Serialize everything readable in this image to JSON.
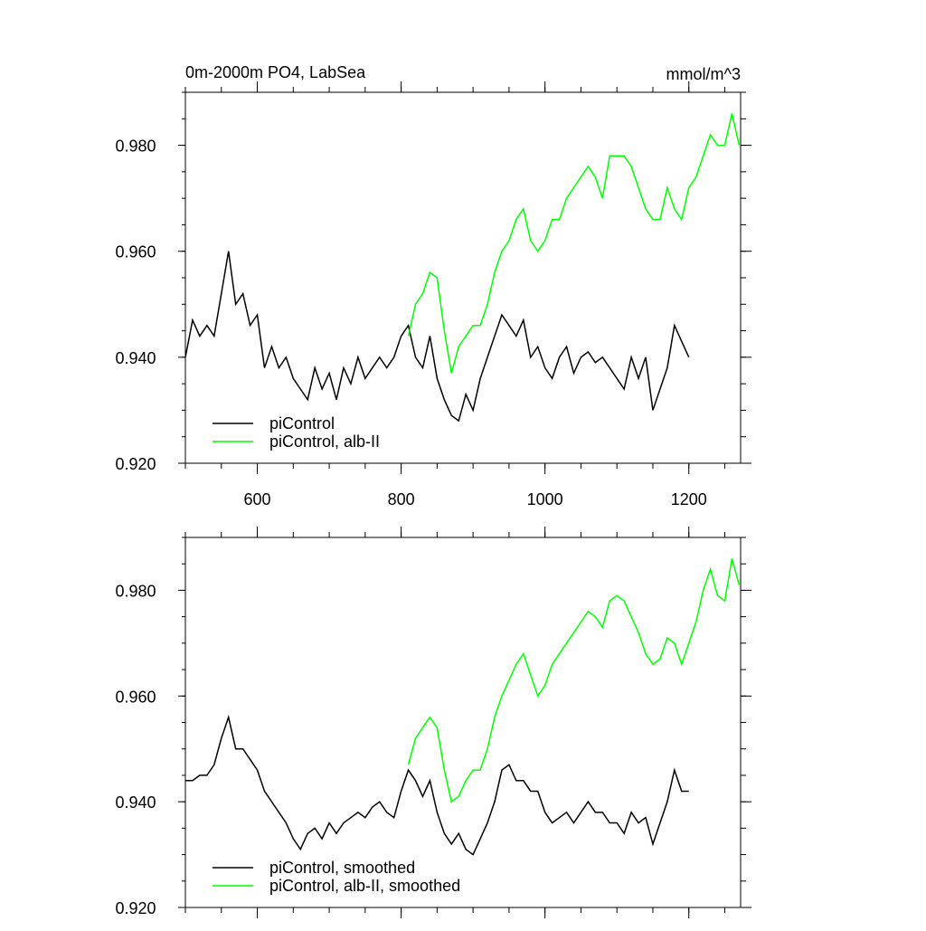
{
  "chart_data": [
    {
      "type": "line",
      "title": "0m-2000m PO4, LabSea",
      "units": "mmol/m^3",
      "xlim": [
        500,
        1272
      ],
      "xticks": [
        600,
        800,
        1000,
        1200
      ],
      "ylim": [
        0.92,
        0.99
      ],
      "yticks": [
        {
          "value": 0.92,
          "label": "0.920"
        },
        {
          "value": 0.94,
          "label": "0.940"
        },
        {
          "value": 0.96,
          "label": "0.960"
        },
        {
          "value": 0.98,
          "label": "0.980"
        }
      ],
      "legend": "lower left",
      "series": [
        {
          "name": "piControl",
          "color": "#000000",
          "x": [
            500,
            510,
            520,
            530,
            540,
            550,
            560,
            570,
            580,
            590,
            600,
            610,
            620,
            630,
            640,
            650,
            660,
            670,
            680,
            690,
            700,
            710,
            720,
            730,
            740,
            750,
            760,
            770,
            780,
            790,
            800,
            810,
            820,
            830,
            840,
            850,
            860,
            870,
            880,
            890,
            900,
            910,
            920,
            930,
            940,
            950,
            960,
            970,
            980,
            990,
            1000,
            1010,
            1020,
            1030,
            1040,
            1050,
            1060,
            1070,
            1080,
            1090,
            1100,
            1110,
            1120,
            1130,
            1140,
            1150,
            1160,
            1170,
            1180,
            1190,
            1200
          ],
          "values": [
            0.94,
            0.947,
            0.944,
            0.946,
            0.944,
            0.952,
            0.96,
            0.95,
            0.952,
            0.946,
            0.948,
            0.938,
            0.942,
            0.938,
            0.94,
            0.936,
            0.934,
            0.932,
            0.938,
            0.934,
            0.937,
            0.932,
            0.938,
            0.935,
            0.94,
            0.936,
            0.938,
            0.94,
            0.938,
            0.94,
            0.944,
            0.946,
            0.94,
            0.938,
            0.944,
            0.936,
            0.932,
            0.929,
            0.928,
            0.933,
            0.93,
            0.936,
            0.94,
            0.944,
            0.948,
            0.946,
            0.944,
            0.947,
            0.94,
            0.942,
            0.938,
            0.936,
            0.94,
            0.942,
            0.937,
            0.94,
            0.941,
            0.939,
            0.94,
            0.938,
            0.936,
            0.934,
            0.94,
            0.936,
            0.94,
            0.93,
            0.934,
            0.938,
            0.946,
            0.943,
            0.94
          ]
        },
        {
          "name": "piControl, alb-II",
          "color": "#00ff00",
          "x": [
            810,
            820,
            830,
            840,
            850,
            860,
            870,
            880,
            890,
            900,
            910,
            920,
            930,
            940,
            950,
            960,
            970,
            980,
            990,
            1000,
            1010,
            1020,
            1030,
            1040,
            1050,
            1060,
            1070,
            1080,
            1090,
            1100,
            1110,
            1120,
            1130,
            1140,
            1150,
            1160,
            1170,
            1180,
            1190,
            1200,
            1210,
            1220,
            1230,
            1240,
            1250,
            1260,
            1270
          ],
          "values": [
            0.944,
            0.95,
            0.952,
            0.956,
            0.955,
            0.945,
            0.937,
            0.942,
            0.944,
            0.946,
            0.946,
            0.95,
            0.956,
            0.96,
            0.962,
            0.966,
            0.968,
            0.962,
            0.96,
            0.962,
            0.966,
            0.966,
            0.97,
            0.972,
            0.974,
            0.976,
            0.974,
            0.97,
            0.978,
            0.978,
            0.978,
            0.976,
            0.972,
            0.968,
            0.966,
            0.966,
            0.972,
            0.968,
            0.966,
            0.972,
            0.974,
            0.978,
            0.982,
            0.98,
            0.98,
            0.986,
            0.98
          ]
        }
      ]
    },
    {
      "type": "line",
      "xlim": [
        500,
        1272
      ],
      "xticks": [
        600,
        800,
        1000,
        1200
      ],
      "ylim": [
        0.92,
        0.99
      ],
      "yticks": [
        {
          "value": 0.92,
          "label": "0.920"
        },
        {
          "value": 0.94,
          "label": "0.940"
        },
        {
          "value": 0.96,
          "label": "0.960"
        },
        {
          "value": 0.98,
          "label": "0.980"
        }
      ],
      "legend": "lower left",
      "series": [
        {
          "name": "piControl, smoothed",
          "color": "#000000",
          "x": [
            500,
            510,
            520,
            530,
            540,
            550,
            560,
            570,
            580,
            590,
            600,
            610,
            620,
            630,
            640,
            650,
            660,
            670,
            680,
            690,
            700,
            710,
            720,
            730,
            740,
            750,
            760,
            770,
            780,
            790,
            800,
            810,
            820,
            830,
            840,
            850,
            860,
            870,
            880,
            890,
            900,
            910,
            920,
            930,
            940,
            950,
            960,
            970,
            980,
            990,
            1000,
            1010,
            1020,
            1030,
            1040,
            1050,
            1060,
            1070,
            1080,
            1090,
            1100,
            1110,
            1120,
            1130,
            1140,
            1150,
            1160,
            1170,
            1180,
            1190,
            1200
          ],
          "values": [
            0.944,
            0.944,
            0.945,
            0.945,
            0.947,
            0.952,
            0.956,
            0.95,
            0.95,
            0.948,
            0.946,
            0.942,
            0.94,
            0.938,
            0.936,
            0.933,
            0.931,
            0.934,
            0.935,
            0.933,
            0.936,
            0.934,
            0.936,
            0.937,
            0.938,
            0.937,
            0.939,
            0.94,
            0.938,
            0.937,
            0.942,
            0.946,
            0.944,
            0.941,
            0.944,
            0.938,
            0.934,
            0.932,
            0.934,
            0.931,
            0.93,
            0.933,
            0.936,
            0.94,
            0.946,
            0.947,
            0.944,
            0.944,
            0.942,
            0.942,
            0.938,
            0.936,
            0.937,
            0.938,
            0.936,
            0.938,
            0.94,
            0.938,
            0.938,
            0.936,
            0.936,
            0.934,
            0.938,
            0.936,
            0.937,
            0.932,
            0.936,
            0.94,
            0.946,
            0.942,
            0.942
          ]
        },
        {
          "name": "piControl, alb-II, smoothed",
          "color": "#00ff00",
          "x": [
            810,
            820,
            830,
            840,
            850,
            860,
            870,
            880,
            890,
            900,
            910,
            920,
            930,
            940,
            950,
            960,
            970,
            980,
            990,
            1000,
            1010,
            1020,
            1030,
            1040,
            1050,
            1060,
            1070,
            1080,
            1090,
            1100,
            1110,
            1120,
            1130,
            1140,
            1150,
            1160,
            1170,
            1180,
            1190,
            1200,
            1210,
            1220,
            1230,
            1240,
            1250,
            1260,
            1270
          ],
          "values": [
            0.947,
            0.952,
            0.954,
            0.956,
            0.954,
            0.946,
            0.94,
            0.941,
            0.944,
            0.946,
            0.946,
            0.95,
            0.956,
            0.96,
            0.963,
            0.966,
            0.968,
            0.964,
            0.96,
            0.962,
            0.966,
            0.968,
            0.97,
            0.972,
            0.974,
            0.976,
            0.975,
            0.973,
            0.978,
            0.979,
            0.978,
            0.975,
            0.972,
            0.968,
            0.966,
            0.967,
            0.971,
            0.97,
            0.966,
            0.97,
            0.974,
            0.98,
            0.984,
            0.979,
            0.978,
            0.986,
            0.981
          ]
        }
      ]
    }
  ]
}
